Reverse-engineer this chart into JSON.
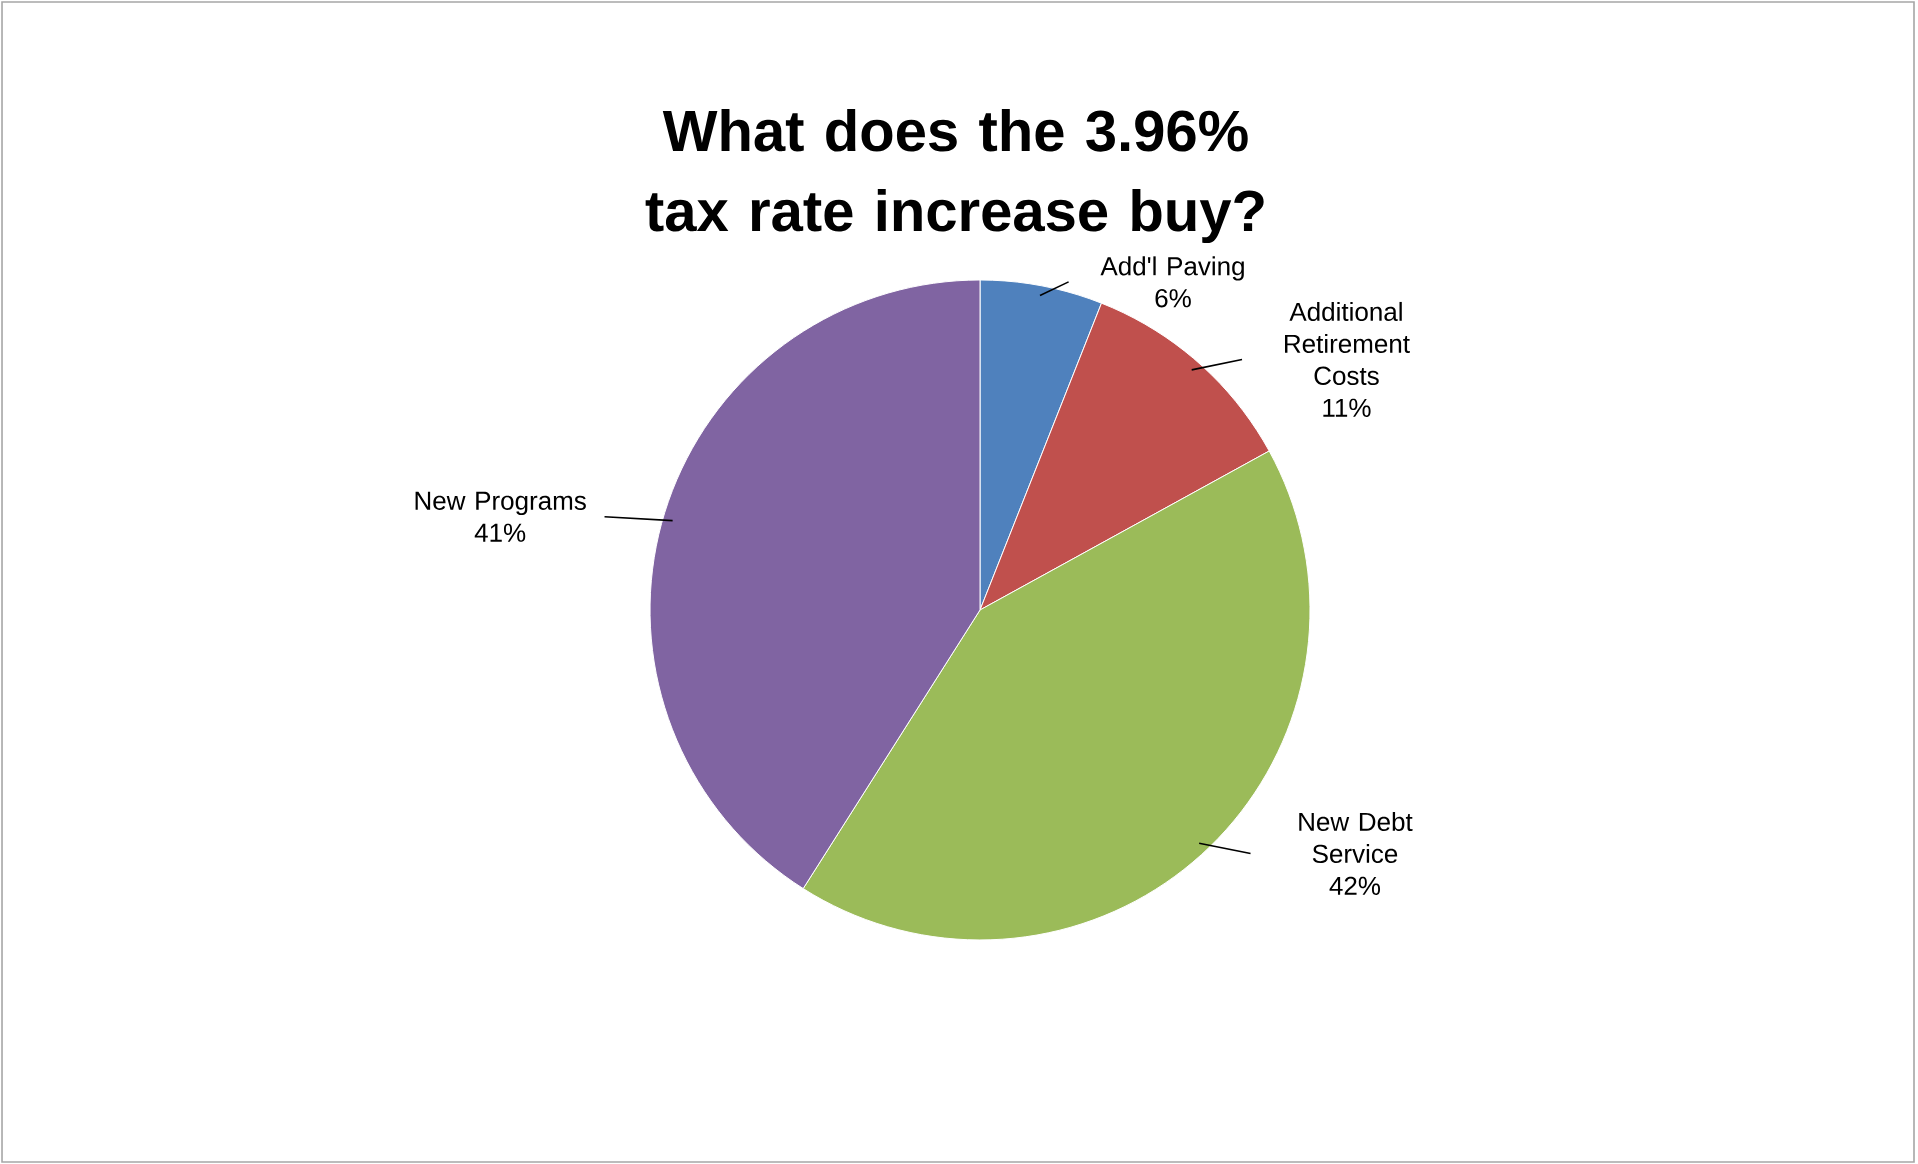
{
  "chart_data": {
    "type": "pie",
    "title": "What does the 3.96% tax rate increase buy?",
    "categories": [
      "Add'l Paving",
      "Additional Retirement Costs",
      "New Debt Service",
      "New Programs"
    ],
    "values": [
      6,
      11,
      42,
      41
    ],
    "value_labels": [
      "6%",
      "11%",
      "42%",
      "41%"
    ],
    "colors": [
      "#4f81bd",
      "#c0504d",
      "#9bbb59",
      "#8064a2"
    ],
    "legend": false
  }
}
